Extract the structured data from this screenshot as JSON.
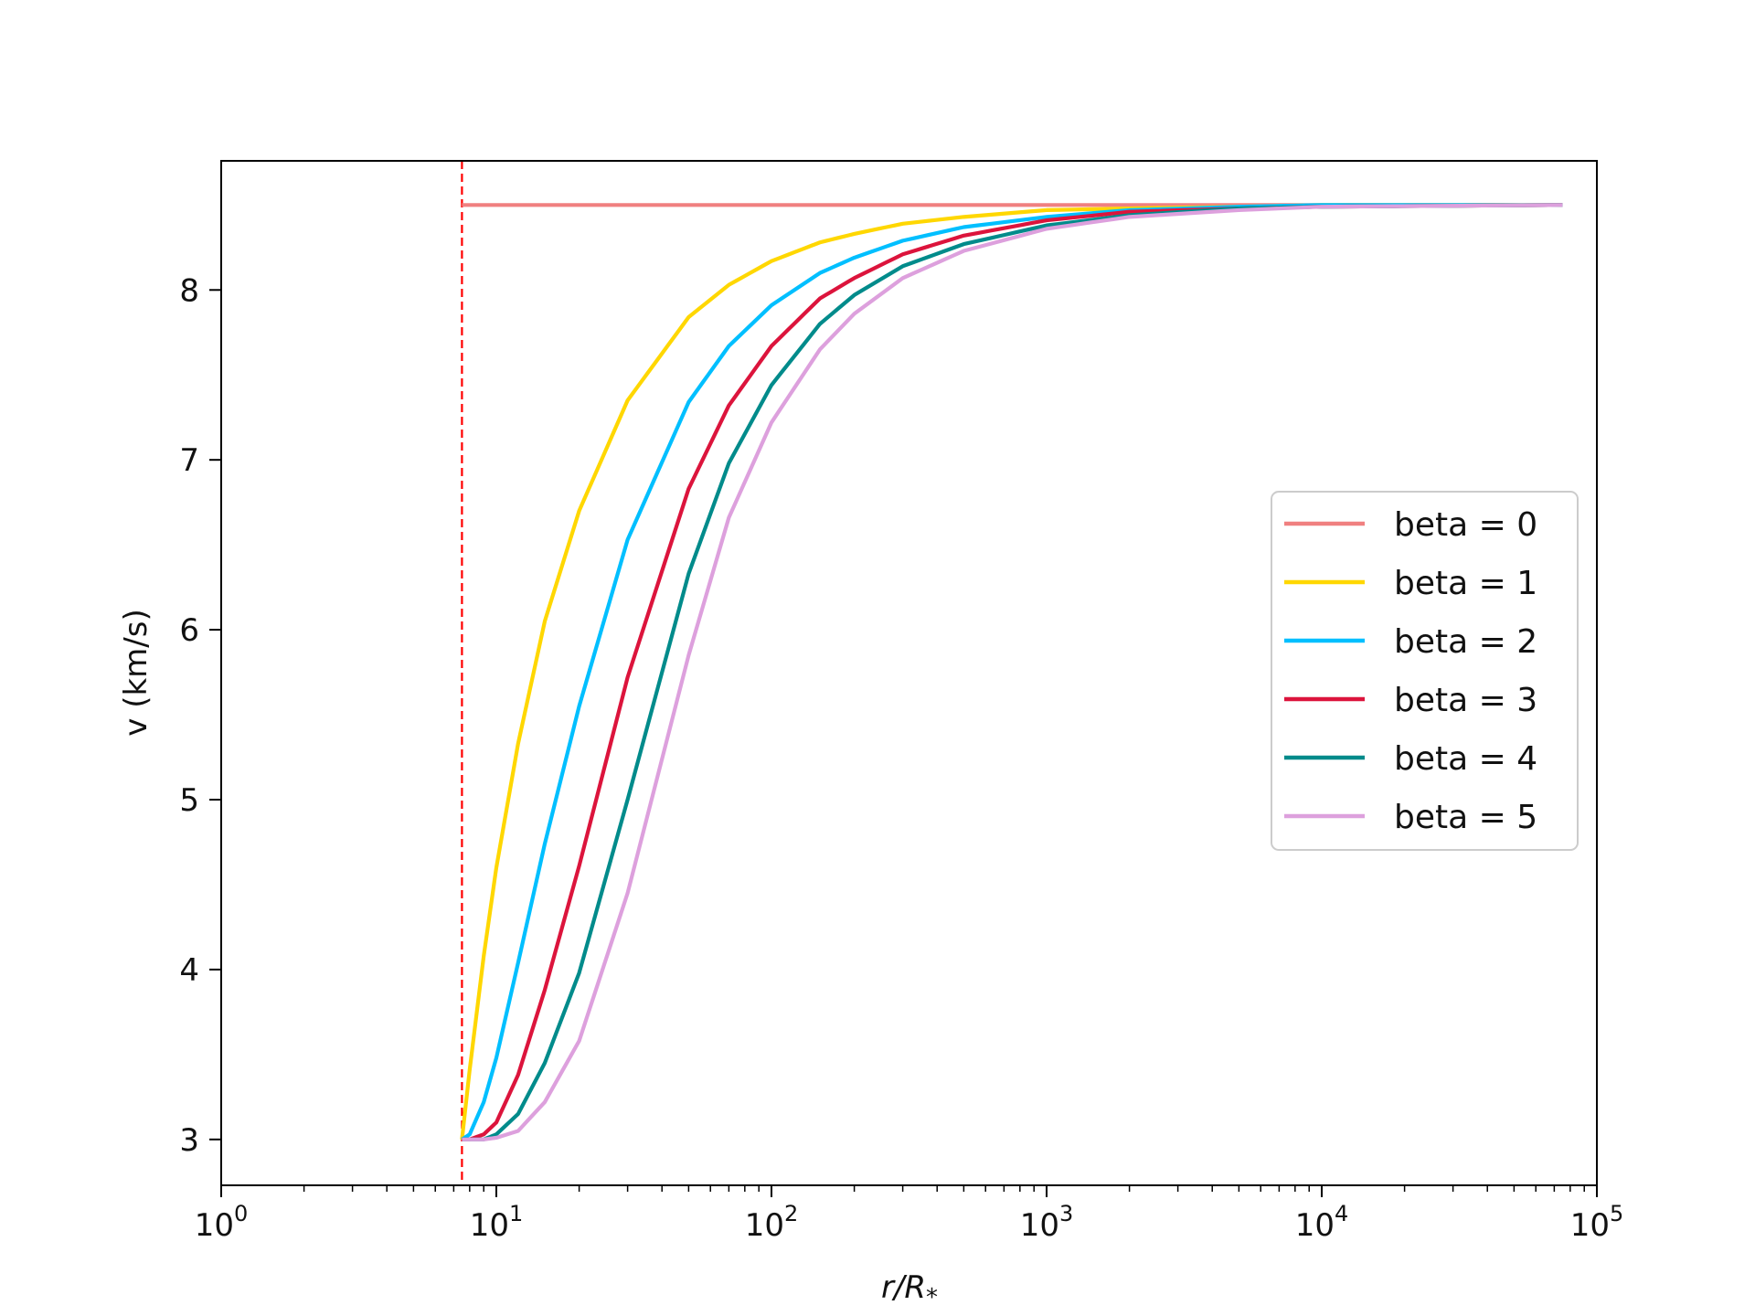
{
  "chart_data": {
    "type": "line",
    "x_scale": "log",
    "xlabel": "r/R",
    "xlabel_sub": "*",
    "ylabel": "v (km/s)",
    "xlim": [
      1,
      100000
    ],
    "ylim": [
      2.73,
      8.76
    ],
    "x_ticks": [
      {
        "value": 1,
        "base": "10",
        "exp": "0"
      },
      {
        "value": 10,
        "base": "10",
        "exp": "1"
      },
      {
        "value": 100,
        "base": "10",
        "exp": "2"
      },
      {
        "value": 1000,
        "base": "10",
        "exp": "3"
      },
      {
        "value": 10000,
        "base": "10",
        "exp": "4"
      },
      {
        "value": 100000,
        "base": "10",
        "exp": "5"
      }
    ],
    "y_ticks": [
      {
        "value": 3,
        "label": "3"
      },
      {
        "value": 4,
        "label": "4"
      },
      {
        "value": 5,
        "label": "5"
      },
      {
        "value": 6,
        "label": "6"
      },
      {
        "value": 7,
        "label": "7"
      },
      {
        "value": 8,
        "label": "8"
      }
    ],
    "grid": false,
    "legend_position": "center-right",
    "reference_line": {
      "x": 7.5,
      "color": "#ff0000",
      "style": "dashed"
    },
    "series": [
      {
        "name": "beta = 0",
        "color": "#f08080",
        "x": [
          7.5,
          10,
          20,
          50,
          100,
          1000,
          10000,
          75000
        ],
        "y": [
          8.5,
          8.5,
          8.5,
          8.5,
          8.5,
          8.5,
          8.5,
          8.5
        ]
      },
      {
        "name": "beta = 1",
        "color": "#ffd700",
        "x": [
          7.5,
          8,
          9,
          10,
          12,
          15,
          20,
          30,
          50,
          70,
          100,
          150,
          200,
          300,
          500,
          1000,
          2000,
          5000,
          10000,
          75000
        ],
        "y": [
          3.0,
          3.41,
          4.08,
          4.6,
          5.33,
          6.05,
          6.7,
          7.35,
          7.84,
          8.03,
          8.17,
          8.28,
          8.33,
          8.39,
          8.43,
          8.47,
          8.48,
          8.49,
          8.5,
          8.5
        ]
      },
      {
        "name": "beta = 2",
        "color": "#00bfff",
        "x": [
          7.5,
          8,
          9,
          10,
          12,
          15,
          20,
          30,
          50,
          70,
          100,
          150,
          200,
          300,
          500,
          1000,
          2000,
          5000,
          10000,
          75000
        ],
        "y": [
          3.0,
          3.03,
          3.22,
          3.48,
          4.04,
          4.74,
          5.55,
          6.53,
          7.34,
          7.67,
          7.91,
          8.1,
          8.19,
          8.29,
          8.37,
          8.43,
          8.47,
          8.49,
          8.5,
          8.5
        ]
      },
      {
        "name": "beta = 3",
        "color": "#dc143c",
        "x": [
          7.5,
          8,
          9,
          10,
          12,
          15,
          20,
          30,
          50,
          70,
          100,
          150,
          200,
          300,
          500,
          1000,
          2000,
          5000,
          10000,
          75000
        ],
        "y": [
          3.0,
          3.0,
          3.03,
          3.1,
          3.38,
          3.88,
          4.61,
          5.72,
          6.83,
          7.32,
          7.67,
          7.95,
          8.07,
          8.21,
          8.32,
          8.41,
          8.46,
          8.48,
          8.49,
          8.5
        ]
      },
      {
        "name": "beta = 4",
        "color": "#008b8b",
        "x": [
          7.5,
          8,
          9,
          10,
          12,
          15,
          20,
          30,
          50,
          70,
          100,
          150,
          200,
          300,
          500,
          1000,
          2000,
          5000,
          10000,
          75000
        ],
        "y": [
          3.0,
          3.0,
          3.0,
          3.03,
          3.15,
          3.45,
          3.98,
          5.0,
          6.33,
          6.98,
          7.44,
          7.8,
          7.97,
          8.14,
          8.27,
          8.38,
          8.44,
          8.48,
          8.49,
          8.5
        ]
      },
      {
        "name": "beta = 5",
        "color": "#dda0dd",
        "x": [
          7.5,
          8,
          9,
          10,
          12,
          15,
          20,
          30,
          50,
          70,
          100,
          150,
          200,
          300,
          500,
          1000,
          2000,
          5000,
          10000,
          75000
        ],
        "y": [
          3.0,
          3.0,
          3.0,
          3.01,
          3.05,
          3.22,
          3.58,
          4.45,
          5.85,
          6.66,
          7.22,
          7.65,
          7.86,
          8.07,
          8.23,
          8.36,
          8.43,
          8.47,
          8.49,
          8.5
        ]
      }
    ]
  }
}
